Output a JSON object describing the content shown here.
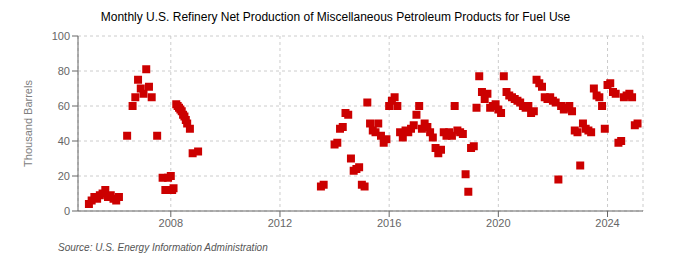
{
  "chart_data": {
    "type": "scatter",
    "title": "Monthly U.S. Refinery Net Production of Miscellaneous Petroleum Products for Fuel Use",
    "ylabel": "Thousand Barrels",
    "annotations": [
      "Source: U.S. Energy Information Administration"
    ],
    "color": "#cc0000",
    "marker": "square",
    "grid": true,
    "xlim": [
      2004.6,
      2025.3
    ],
    "xticks": [
      2008,
      2012,
      2016,
      2020,
      2024
    ],
    "ylim": [
      0,
      100
    ],
    "yticks": [
      0,
      20,
      40,
      60,
      80,
      100
    ],
    "x": [
      2005.0,
      2005.1,
      2005.2,
      2005.3,
      2005.4,
      2005.5,
      2005.6,
      2005.7,
      2005.8,
      2005.9,
      2006.0,
      2006.1,
      2006.4,
      2006.6,
      2006.7,
      2006.8,
      2006.9,
      2007.0,
      2007.1,
      2007.2,
      2007.3,
      2007.5,
      2007.7,
      2007.8,
      2007.9,
      2008.0,
      2008.05,
      2008.1,
      2008.2,
      2008.25,
      2008.3,
      2008.35,
      2008.4,
      2008.45,
      2008.5,
      2008.55,
      2008.6,
      2008.7,
      2008.8,
      2009.0,
      2013.5,
      2013.6,
      2014.0,
      2014.1,
      2014.2,
      2014.3,
      2014.4,
      2014.5,
      2014.6,
      2014.7,
      2014.8,
      2014.9,
      2015.0,
      2015.1,
      2015.2,
      2015.3,
      2015.4,
      2015.5,
      2015.6,
      2015.7,
      2015.8,
      2015.9,
      2016.0,
      2016.1,
      2016.2,
      2016.3,
      2016.4,
      2016.5,
      2016.6,
      2016.7,
      2016.8,
      2016.9,
      2017.0,
      2017.1,
      2017.2,
      2017.3,
      2017.4,
      2017.5,
      2017.6,
      2017.7,
      2017.8,
      2017.9,
      2018.0,
      2018.1,
      2018.2,
      2018.3,
      2018.4,
      2018.5,
      2018.6,
      2018.7,
      2018.8,
      2018.9,
      2019.0,
      2019.1,
      2019.2,
      2019.3,
      2019.4,
      2019.5,
      2019.6,
      2019.7,
      2019.8,
      2019.9,
      2020.0,
      2020.1,
      2020.2,
      2020.3,
      2020.4,
      2020.5,
      2020.6,
      2020.7,
      2020.8,
      2020.9,
      2021.0,
      2021.1,
      2021.2,
      2021.3,
      2021.4,
      2021.5,
      2021.6,
      2021.7,
      2021.8,
      2021.9,
      2022.0,
      2022.1,
      2022.2,
      2022.3,
      2022.4,
      2022.5,
      2022.6,
      2022.7,
      2022.8,
      2022.9,
      2023.0,
      2023.1,
      2023.2,
      2023.3,
      2023.4,
      2023.5,
      2023.6,
      2023.7,
      2023.8,
      2023.9,
      2024.0,
      2024.1,
      2024.2,
      2024.3,
      2024.4,
      2024.5,
      2024.6,
      2024.7,
      2024.8,
      2024.9,
      2025.0,
      2025.1
    ],
    "values": [
      4,
      6,
      8,
      7,
      9,
      10,
      12,
      8,
      9,
      7,
      6,
      8,
      43,
      60,
      65,
      75,
      70,
      67,
      81,
      71,
      65,
      43,
      19,
      12,
      19,
      20,
      12,
      13,
      61,
      60,
      59,
      58,
      57,
      55,
      54,
      52,
      50,
      47,
      33,
      34,
      14,
      15,
      38,
      39,
      47,
      48,
      56,
      55,
      30,
      23,
      24,
      25,
      15,
      14,
      62,
      50,
      46,
      45,
      50,
      43,
      39,
      41,
      60,
      63,
      65,
      60,
      45,
      42,
      46,
      45,
      47,
      49,
      55,
      60,
      47,
      50,
      48,
      45,
      42,
      36,
      33,
      35,
      45,
      43,
      45,
      43,
      60,
      46,
      45,
      44,
      21,
      11,
      36,
      37,
      59,
      77,
      68,
      64,
      67,
      59,
      60,
      61,
      58,
      56,
      77,
      68,
      66,
      65,
      64,
      63,
      62,
      60,
      59,
      60,
      56,
      57,
      75,
      73,
      71,
      65,
      64,
      65,
      63,
      62,
      18,
      60,
      58,
      59,
      60,
      57,
      46,
      45,
      26,
      50,
      47,
      46,
      45,
      70,
      66,
      65,
      60,
      47,
      72,
      73,
      68,
      67,
      39,
      40,
      65,
      66,
      67,
      65,
      49,
      50
    ]
  }
}
